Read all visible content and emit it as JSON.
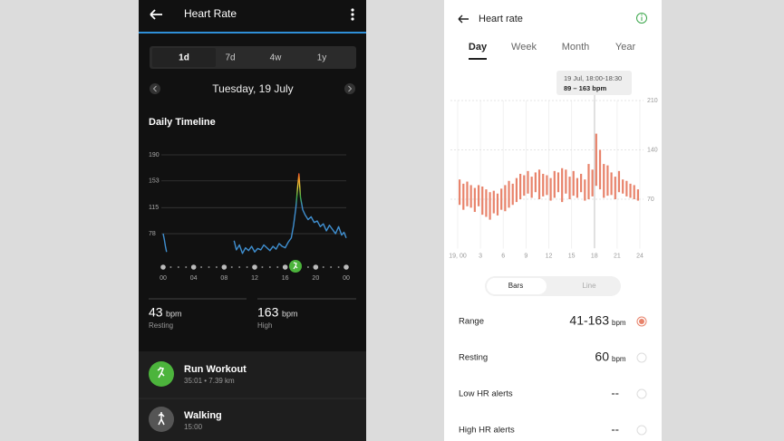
{
  "left_app": {
    "header": {
      "title": "Heart Rate"
    },
    "range_tabs": [
      "1d",
      "7d",
      "4w",
      "1y"
    ],
    "date": "Tuesday, 19 July",
    "section_title": "Daily Timeline",
    "chart": {
      "type": "line",
      "color": "#3f8fd0",
      "grid": true,
      "x": [
        0,
        0.15,
        0.3,
        0.45,
        5,
        9.3,
        9.6,
        10,
        10.4,
        10.8,
        11.2,
        11.6,
        12,
        12.4,
        12.8,
        13.2,
        13.6,
        14,
        14.4,
        14.8,
        15.2,
        15.6,
        16,
        16.4,
        16.8,
        17.1,
        17.4,
        17.6,
        17.8,
        18,
        18.3,
        18.6,
        19,
        19.4,
        19.8,
        20.2,
        20.6,
        21,
        21.4,
        21.8,
        22.2,
        22.6,
        23,
        23.4,
        23.7,
        24
      ],
      "values": [
        78,
        70,
        60,
        52,
        null,
        68,
        55,
        62,
        50,
        58,
        54,
        60,
        52,
        57,
        55,
        62,
        58,
        54,
        60,
        56,
        64,
        60,
        58,
        66,
        72,
        90,
        115,
        140,
        163,
        130,
        112,
        105,
        98,
        102,
        94,
        96,
        88,
        92,
        82,
        90,
        84,
        78,
        88,
        76,
        80,
        72
      ],
      "xlim": [
        0,
        24
      ],
      "ylim": [
        40,
        190
      ],
      "xticks": [
        {
          "value": 0,
          "label": "00"
        },
        {
          "value": 4,
          "label": "04"
        },
        {
          "value": 8,
          "label": "08"
        },
        12,
        16,
        20,
        {
          "value": 24,
          "label": "00"
        }
      ],
      "yticks": [
        78,
        115,
        153,
        190
      ]
    },
    "stats": [
      {
        "value": 43,
        "unit": "bpm",
        "label": "Resting"
      },
      {
        "value": 163,
        "unit": "bpm",
        "label": "High"
      }
    ],
    "activities": [
      {
        "name": "Run Workout",
        "detail": "35:01 • 7.39 km"
      },
      {
        "name": "Walking",
        "detail": "15:00"
      }
    ]
  },
  "right_app": {
    "header": {
      "title": "Heart rate"
    },
    "period_tabs": [
      "Day",
      "Week",
      "Month",
      "Year"
    ],
    "chart": {
      "type": "range_bar",
      "color": "#e8836b",
      "grid": true,
      "annotation": {
        "title": "19 Jul, 18:00-18:30",
        "text": "89 – 163 bpm"
      },
      "x": [
        0,
        0.5,
        1,
        1.5,
        2,
        2.5,
        3,
        3.5,
        4,
        4.5,
        5,
        5.5,
        6,
        6.5,
        7,
        7.5,
        8,
        8.5,
        9,
        9.5,
        10,
        10.5,
        11,
        11.5,
        12,
        12.5,
        13,
        13.5,
        14,
        14.5,
        15,
        15.5,
        16,
        16.5,
        17,
        17.5,
        18,
        18.5,
        19,
        19.5,
        20,
        20.5,
        21,
        21.5,
        22,
        22.5,
        23,
        23.5
      ],
      "low": [
        62,
        55,
        60,
        58,
        52,
        60,
        48,
        45,
        41,
        50,
        47,
        55,
        53,
        58,
        62,
        66,
        70,
        75,
        78,
        72,
        80,
        70,
        74,
        76,
        68,
        72,
        80,
        66,
        78,
        70,
        75,
        72,
        80,
        68,
        70,
        74,
        89,
        84,
        72,
        75,
        76,
        70,
        80,
        78,
        74,
        72,
        70,
        68
      ],
      "high": [
        98,
        92,
        95,
        90,
        86,
        90,
        88,
        84,
        80,
        82,
        78,
        85,
        90,
        96,
        92,
        100,
        106,
        104,
        110,
        102,
        108,
        112,
        106,
        104,
        100,
        110,
        108,
        114,
        112,
        102,
        110,
        100,
        106,
        98,
        120,
        112,
        163,
        140,
        120,
        118,
        108,
        102,
        110,
        98,
        96,
        92,
        90,
        84
      ],
      "xlim": [
        0,
        24
      ],
      "ylim": [
        0,
        210
      ],
      "xticks": [
        {
          "value": 0,
          "label": "19, 00"
        },
        3,
        6,
        9,
        12,
        15,
        18,
        21,
        24
      ],
      "yticks": [
        70,
        140,
        210
      ]
    },
    "view_toggle": [
      "Bars",
      "Line"
    ],
    "rows": [
      {
        "label": "Range",
        "value": "41-163",
        "unit": "bpm"
      },
      {
        "label": "Resting",
        "value": 60,
        "unit": "bpm"
      },
      {
        "label": "Low HR alerts",
        "value": "--"
      },
      {
        "label": "High HR alerts",
        "value": "--"
      }
    ]
  }
}
